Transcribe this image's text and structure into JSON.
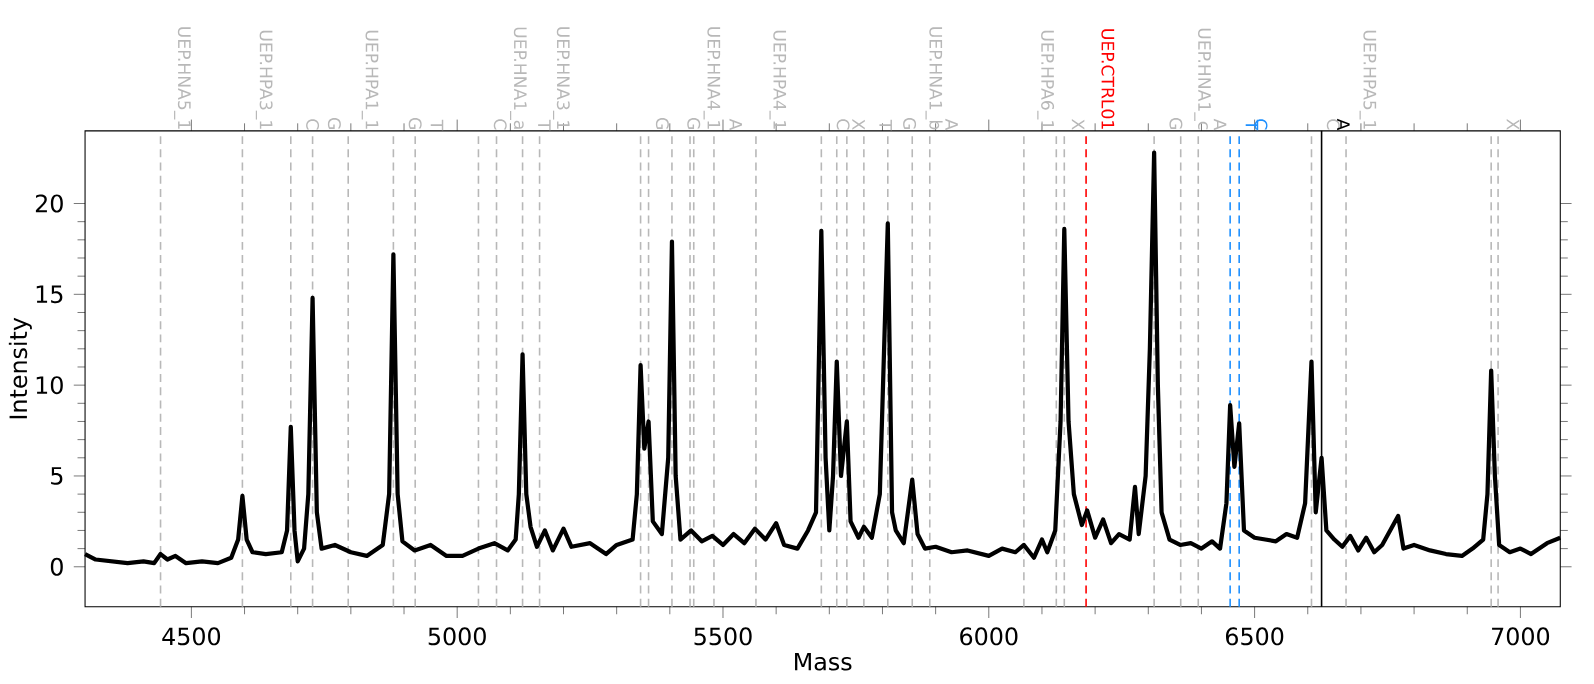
{
  "chart_data": {
    "type": "line",
    "xlabel": "Mass",
    "ylabel": "Intensity",
    "xlim": [
      4300,
      7075
    ],
    "ylim": [
      -2.2,
      24
    ],
    "xticks": [
      4500,
      5000,
      5500,
      6000,
      6500,
      7000
    ],
    "yticks": [
      0,
      5,
      10,
      15,
      20
    ],
    "color": "#000000",
    "marker": "none",
    "line_style": "solid",
    "x": [
      4300,
      4320,
      4350,
      4380,
      4410,
      4430,
      4442,
      4455,
      4470,
      4490,
      4520,
      4550,
      4575,
      4588,
      4596,
      4604,
      4615,
      4640,
      4670,
      4680,
      4687,
      4694,
      4700,
      4712,
      4720,
      4728,
      4736,
      4745,
      4770,
      4800,
      4830,
      4860,
      4872,
      4880,
      4888,
      4897,
      4920,
      4950,
      4980,
      5010,
      5040,
      5070,
      5095,
      5110,
      5116,
      5123,
      5130,
      5138,
      5150,
      5165,
      5180,
      5200,
      5215,
      5250,
      5280,
      5300,
      5330,
      5338,
      5345,
      5352,
      5360,
      5368,
      5385,
      5397,
      5404,
      5411,
      5420,
      5440,
      5460,
      5480,
      5500,
      5520,
      5540,
      5560,
      5580,
      5600,
      5615,
      5640,
      5660,
      5675,
      5685,
      5693,
      5700,
      5707,
      5714,
      5722,
      5733,
      5740,
      5755,
      5765,
      5780,
      5795,
      5810,
      5818,
      5825,
      5840,
      5856,
      5866,
      5880,
      5900,
      5930,
      5960,
      6000,
      6025,
      6050,
      6066,
      6085,
      6100,
      6110,
      6125,
      6135,
      6142,
      6150,
      6160,
      6175,
      6185,
      6200,
      6215,
      6230,
      6245,
      6265,
      6275,
      6282,
      6295,
      6303,
      6311,
      6318,
      6325,
      6340,
      6360,
      6380,
      6400,
      6420,
      6435,
      6447,
      6454,
      6462,
      6471,
      6480,
      6500,
      6520,
      6540,
      6560,
      6580,
      6595,
      6607,
      6615,
      6626,
      6635,
      6650,
      6665,
      6680,
      6695,
      6710,
      6725,
      6740,
      6770,
      6780,
      6800,
      6830,
      6860,
      6890,
      6910,
      6930,
      6938,
      6945,
      6952,
      6960,
      6980,
      7000,
      7020,
      7050,
      7075
    ],
    "values": [
      0.7,
      0.4,
      0.3,
      0.2,
      0.3,
      0.2,
      0.7,
      0.4,
      0.6,
      0.2,
      0.3,
      0.2,
      0.5,
      1.5,
      3.9,
      1.5,
      0.8,
      0.7,
      0.8,
      2,
      7.7,
      2,
      0.3,
      1,
      4,
      14.8,
      3,
      1,
      1.2,
      0.8,
      0.6,
      1.2,
      4,
      17.2,
      4,
      1.4,
      0.9,
      1.2,
      0.6,
      0.6,
      1.0,
      1.3,
      0.9,
      1.5,
      4,
      11.7,
      4,
      2.2,
      1.1,
      2.0,
      0.9,
      2.1,
      1.1,
      1.3,
      0.7,
      1.2,
      1.5,
      4,
      11.1,
      6.5,
      8.0,
      2.5,
      1.8,
      6,
      17.9,
      5,
      1.5,
      2.0,
      1.4,
      1.7,
      1.2,
      1.8,
      1.3,
      2.1,
      1.5,
      2.4,
      1.2,
      1.0,
      2.0,
      3,
      18.5,
      6,
      2,
      5,
      11.3,
      5,
      8.0,
      2.5,
      1.6,
      2.2,
      1.6,
      4,
      18.9,
      3,
      2.0,
      1.3,
      4.8,
      1.8,
      1.0,
      1.1,
      0.8,
      0.9,
      0.6,
      1.0,
      0.8,
      1.2,
      0.5,
      1.5,
      0.8,
      2,
      8,
      18.6,
      8,
      4,
      2.3,
      3.1,
      1.6,
      2.6,
      1.3,
      1.8,
      1.5,
      4.4,
      1.8,
      5,
      12,
      22.8,
      10,
      3,
      1.5,
      1.2,
      1.3,
      1.0,
      1.4,
      1.0,
      3.5,
      8.9,
      5.5,
      7.9,
      2.0,
      1.6,
      1.5,
      1.4,
      1.8,
      1.6,
      3.5,
      11.3,
      3,
      6.0,
      2.0,
      1.5,
      1.1,
      1.7,
      0.9,
      1.6,
      0.8,
      1.2,
      2.8,
      1.0,
      1.2,
      0.9,
      0.7,
      0.6,
      1.0,
      1.5,
      4,
      10.8,
      5,
      1.2,
      0.8,
      1.0,
      0.7,
      1.3,
      1.6
    ],
    "ref_lines": [
      {
        "axis": "x",
        "value": 4442,
        "label": "UEP.HNA5_1",
        "color": "#b8b8b8",
        "line_style": "dashed"
      },
      {
        "axis": "x",
        "value": 4596,
        "label": "UEP.HPA3_1",
        "color": "#b8b8b8",
        "line_style": "dashed"
      },
      {
        "axis": "x",
        "value": 4687,
        "label": "C",
        "color": "#b8b8b8",
        "line_style": "dashed"
      },
      {
        "axis": "x",
        "value": 4728,
        "label": "G",
        "color": "#b8b8b8",
        "line_style": "dashed"
      },
      {
        "axis": "x",
        "value": 4795,
        "label": "UEP.HPA1_1",
        "color": "#b8b8b8",
        "line_style": "dashed"
      },
      {
        "axis": "x",
        "value": 4880,
        "label": "G",
        "color": "#b8b8b8",
        "line_style": "dashed"
      },
      {
        "axis": "x",
        "value": 4921,
        "label": "T",
        "color": "#b8b8b8",
        "line_style": "dashed"
      },
      {
        "axis": "x",
        "value": 5040,
        "label": "C",
        "color": "#b8b8b8",
        "line_style": "dashed"
      },
      {
        "axis": "x",
        "value": 5074,
        "label": "UEP.HNA1_a",
        "color": "#b8b8b8",
        "line_style": "dashed"
      },
      {
        "axis": "x",
        "value": 5123,
        "label": "T",
        "color": "#b8b8b8",
        "line_style": "dashed"
      },
      {
        "axis": "x",
        "value": 5155,
        "label": "UEP.HNA3_1",
        "color": "#b8b8b8",
        "line_style": "dashed"
      },
      {
        "axis": "x",
        "value": 5345,
        "label": "G",
        "color": "#b8b8b8",
        "line_style": "dashed"
      },
      {
        "axis": "x",
        "value": 5360,
        "color": "#b8b8b8",
        "line_style": "dashed"
      },
      {
        "axis": "x",
        "value": 5404,
        "label": "G",
        "color": "#b8b8b8",
        "line_style": "dashed"
      },
      {
        "axis": "x",
        "value": 5438,
        "label": "UEP.HNA4_1",
        "color": "#b8b8b8",
        "line_style": "dashed"
      },
      {
        "axis": "x",
        "value": 5445,
        "color": "#b8b8b8",
        "line_style": "dashed"
      },
      {
        "axis": "x",
        "value": 5483,
        "label": "A",
        "color": "#b8b8b8",
        "line_style": "dashed"
      },
      {
        "axis": "x",
        "value": 5562,
        "label": "UEP.HPA4_1",
        "color": "#b8b8b8",
        "line_style": "dashed"
      },
      {
        "axis": "x",
        "value": 5685,
        "label": "C",
        "color": "#b8b8b8",
        "line_style": "dashed"
      },
      {
        "axis": "x",
        "value": 5714,
        "label": "X",
        "color": "#b8b8b8",
        "line_style": "dashed"
      },
      {
        "axis": "x",
        "value": 5733,
        "color": "#b8b8b8",
        "line_style": "dashed"
      },
      {
        "axis": "x",
        "value": 5765,
        "label": "T",
        "color": "#b8b8b8",
        "line_style": "dashed"
      },
      {
        "axis": "x",
        "value": 5810,
        "label": "G",
        "color": "#b8b8b8",
        "line_style": "dashed"
      },
      {
        "axis": "x",
        "value": 5856,
        "label": "UEP.HNA1_b",
        "color": "#b8b8b8",
        "line_style": "dashed"
      },
      {
        "axis": "x",
        "value": 5889,
        "label": "A",
        "color": "#b8b8b8",
        "line_style": "dashed"
      },
      {
        "axis": "x",
        "value": 6066,
        "label": "UEP.HPA6_1",
        "color": "#b8b8b8",
        "line_style": "dashed"
      },
      {
        "axis": "x",
        "value": 6127,
        "label": "X",
        "color": "#b8b8b8",
        "line_style": "dashed"
      },
      {
        "axis": "x",
        "value": 6142,
        "color": "#b8b8b8",
        "line_style": "dashed"
      },
      {
        "axis": "x",
        "value": 6183,
        "label": "UEP.CTRL01",
        "color": "#ff0000",
        "line_style": "dashed"
      },
      {
        "axis": "x",
        "value": 6311,
        "label": "G",
        "color": "#b8b8b8",
        "line_style": "dashed"
      },
      {
        "axis": "x",
        "value": 6361,
        "label": "UEP.HNA1_c",
        "color": "#b8b8b8",
        "line_style": "dashed"
      },
      {
        "axis": "x",
        "value": 6394,
        "label": "A",
        "color": "#b8b8b8",
        "line_style": "dashed"
      },
      {
        "axis": "x",
        "value": 6454,
        "label": "T",
        "color": "#1e90ff",
        "line_style": "dashed"
      },
      {
        "axis": "x",
        "value": 6471,
        "label": "C",
        "color": "#1e90ff",
        "line_style": "dashed"
      },
      {
        "axis": "x",
        "value": 6607,
        "label": "C",
        "color": "#b8b8b8",
        "line_style": "dashed"
      },
      {
        "axis": "x",
        "value": 6626,
        "label": "A",
        "color": "#000000",
        "line_style": "solid"
      },
      {
        "axis": "x",
        "value": 6672,
        "label": "UEP.HPA5_1",
        "color": "#b8b8b8",
        "line_style": "dashed"
      },
      {
        "axis": "x",
        "value": 6945,
        "label": "X",
        "color": "#b8b8b8",
        "line_style": "dashed"
      },
      {
        "axis": "x",
        "value": 6958,
        "color": "#b8b8b8",
        "line_style": "dashed"
      }
    ]
  }
}
